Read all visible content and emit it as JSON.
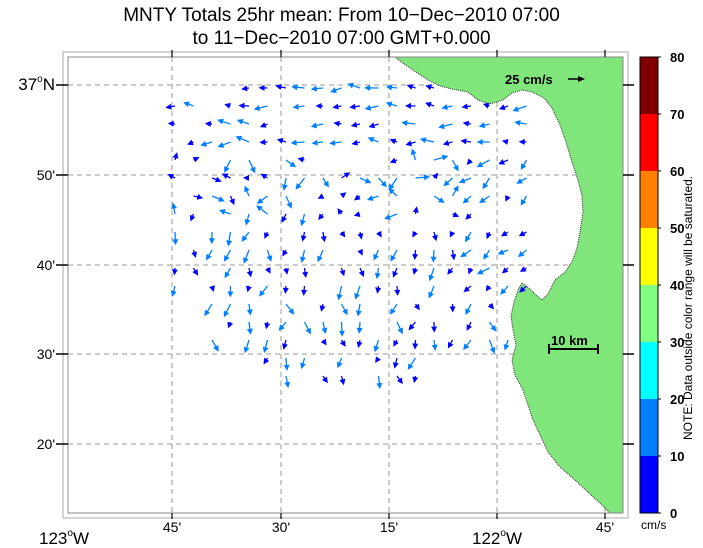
{
  "title": {
    "line1": "MNTY Totals 25hr mean: From 10−Dec−2010 07:00",
    "line2": "to 11−Dec−2010 07:00 GMT+0.000"
  },
  "map": {
    "lat_labels": [
      {
        "text": "37",
        "suffix": "N",
        "deg": true
      },
      {
        "text": "50'"
      },
      {
        "text": "40'"
      },
      {
        "text": "30'"
      },
      {
        "text": "20'"
      }
    ],
    "lon_labels": [
      {
        "text": "123",
        "suffix": "W",
        "deg": true
      },
      {
        "text": "45'"
      },
      {
        "text": "30'"
      },
      {
        "text": "15'"
      },
      {
        "text": "122",
        "suffix": "W",
        "deg": true
      },
      {
        "text": "45'"
      }
    ],
    "reference_vector": "25 cm/s",
    "scale_bar": "10 km",
    "land_color": "#80e57a",
    "ocean_color": "#ffffff"
  },
  "colorbar": {
    "ticks": [
      "0",
      "10",
      "20",
      "30",
      "40",
      "50",
      "60",
      "70",
      "80"
    ],
    "colors": [
      "#0000ff",
      "#0080ff",
      "#00ffff",
      "#80ff80",
      "#ffff00",
      "#ff8000",
      "#ff0000",
      "#800000"
    ],
    "units": "cm/s",
    "note": "NOTE: Data outside color range will be saturated."
  }
}
